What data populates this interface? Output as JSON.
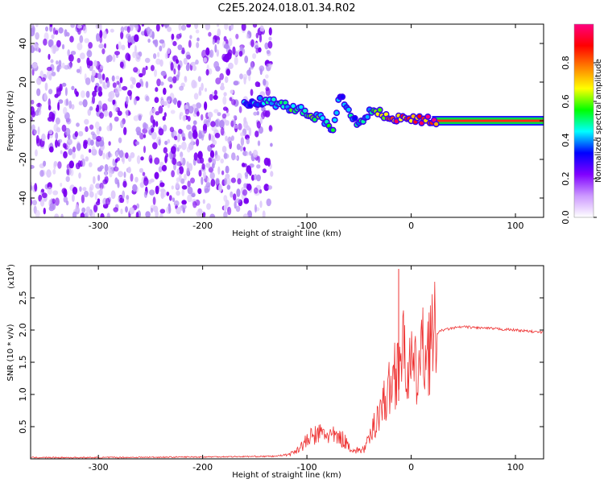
{
  "title": "C2E5.2024.018.01.34.R02",
  "colorbar": {
    "label": "Normalized spectral amplitude",
    "ticks": [
      "0.0",
      "0.2",
      "0.4",
      "0.6",
      "0.8"
    ],
    "tick_values": [
      0.0,
      0.2,
      0.4,
      0.6,
      0.8
    ],
    "range": [
      0,
      1
    ],
    "colors": [
      "#ffffff",
      "#cc99ff",
      "#8000ff",
      "#0000ff",
      "#00ffff",
      "#00ff00",
      "#ffff00",
      "#ff8000",
      "#ff0000",
      "#ff0080"
    ]
  },
  "chart_data": [
    {
      "type": "heatmap",
      "xlabel": "Height of straight line (km)",
      "ylabel": "Frequency (Hz)",
      "xlim": [
        -365,
        127
      ],
      "ylim": [
        -50,
        50
      ],
      "xticks": [
        -300,
        -200,
        -100,
        0,
        100
      ],
      "xtick_labels": [
        "-300",
        "-200",
        "-100",
        "0",
        "100"
      ],
      "yticks": [
        -40,
        -20,
        0,
        20,
        40
      ],
      "ytick_labels": [
        "-40",
        "-20",
        "0",
        "20",
        "40"
      ],
      "noise_region": {
        "x": [
          -365,
          -140
        ],
        "y": [
          -50,
          50
        ],
        "amplitude": 0.1
      },
      "ridge_points": [
        {
          "x": -160,
          "y": 9,
          "a": 0.4
        },
        {
          "x": -145,
          "y": 10,
          "a": 0.45
        },
        {
          "x": -130,
          "y": 9,
          "a": 0.5
        },
        {
          "x": -115,
          "y": 7,
          "a": 0.55
        },
        {
          "x": -100,
          "y": 4,
          "a": 0.6
        },
        {
          "x": -85,
          "y": 1,
          "a": 0.55
        },
        {
          "x": -75,
          "y": -4,
          "a": 0.5
        },
        {
          "x": -68,
          "y": 14,
          "a": 0.35
        },
        {
          "x": -60,
          "y": 5,
          "a": 0.45
        },
        {
          "x": -50,
          "y": -2,
          "a": 0.45
        },
        {
          "x": -40,
          "y": 5,
          "a": 0.55
        },
        {
          "x": -30,
          "y": 4,
          "a": 0.7
        },
        {
          "x": -20,
          "y": 2,
          "a": 0.85
        },
        {
          "x": -10,
          "y": 1,
          "a": 0.9
        },
        {
          "x": 0,
          "y": 1,
          "a": 0.95
        },
        {
          "x": 20,
          "y": 0,
          "a": 0.98
        },
        {
          "x": 127,
          "y": 0,
          "a": 0.98
        }
      ]
    },
    {
      "type": "line",
      "xlabel": "Height of straight line (km)",
      "ylabel": "SNR (10 * v/v)",
      "scale_note": "(x10",
      "scale_exp": "4",
      "scale_close": ")",
      "xlim": [
        -365,
        127
      ],
      "ylim": [
        0,
        3.0
      ],
      "xticks": [
        -300,
        -200,
        -100,
        0,
        100
      ],
      "xtick_labels": [
        "-300",
        "-200",
        "-100",
        "0",
        "100"
      ],
      "yticks": [
        0.5,
        1.0,
        1.5,
        2.0,
        2.5
      ],
      "ytick_labels": [
        "0.5",
        "1.0",
        "1.5",
        "2.0",
        "2.5"
      ],
      "color": "#ee3333",
      "series": [
        {
          "x": [
            -365,
            -300,
            -200,
            -130,
            -115,
            -105,
            -95,
            -85,
            -75,
            -65,
            -55,
            -45,
            -40,
            -35,
            -30,
            -25,
            -20,
            -15,
            -10,
            -5,
            0,
            5,
            10,
            15,
            20,
            25,
            30,
            40,
            50,
            60,
            80,
            100,
            127
          ],
          "y": [
            0.02,
            0.02,
            0.03,
            0.04,
            0.08,
            0.2,
            0.35,
            0.4,
            0.35,
            0.3,
            0.12,
            0.15,
            0.3,
            0.55,
            0.8,
            0.9,
            1.1,
            1.4,
            1.7,
            1.5,
            1.4,
            1.3,
            1.6,
            1.75,
            1.85,
            1.95,
            2.0,
            2.03,
            2.05,
            2.04,
            2.02,
            2.0,
            1.96
          ]
        }
      ],
      "spike": {
        "x": -12,
        "y": 2.95
      }
    }
  ]
}
